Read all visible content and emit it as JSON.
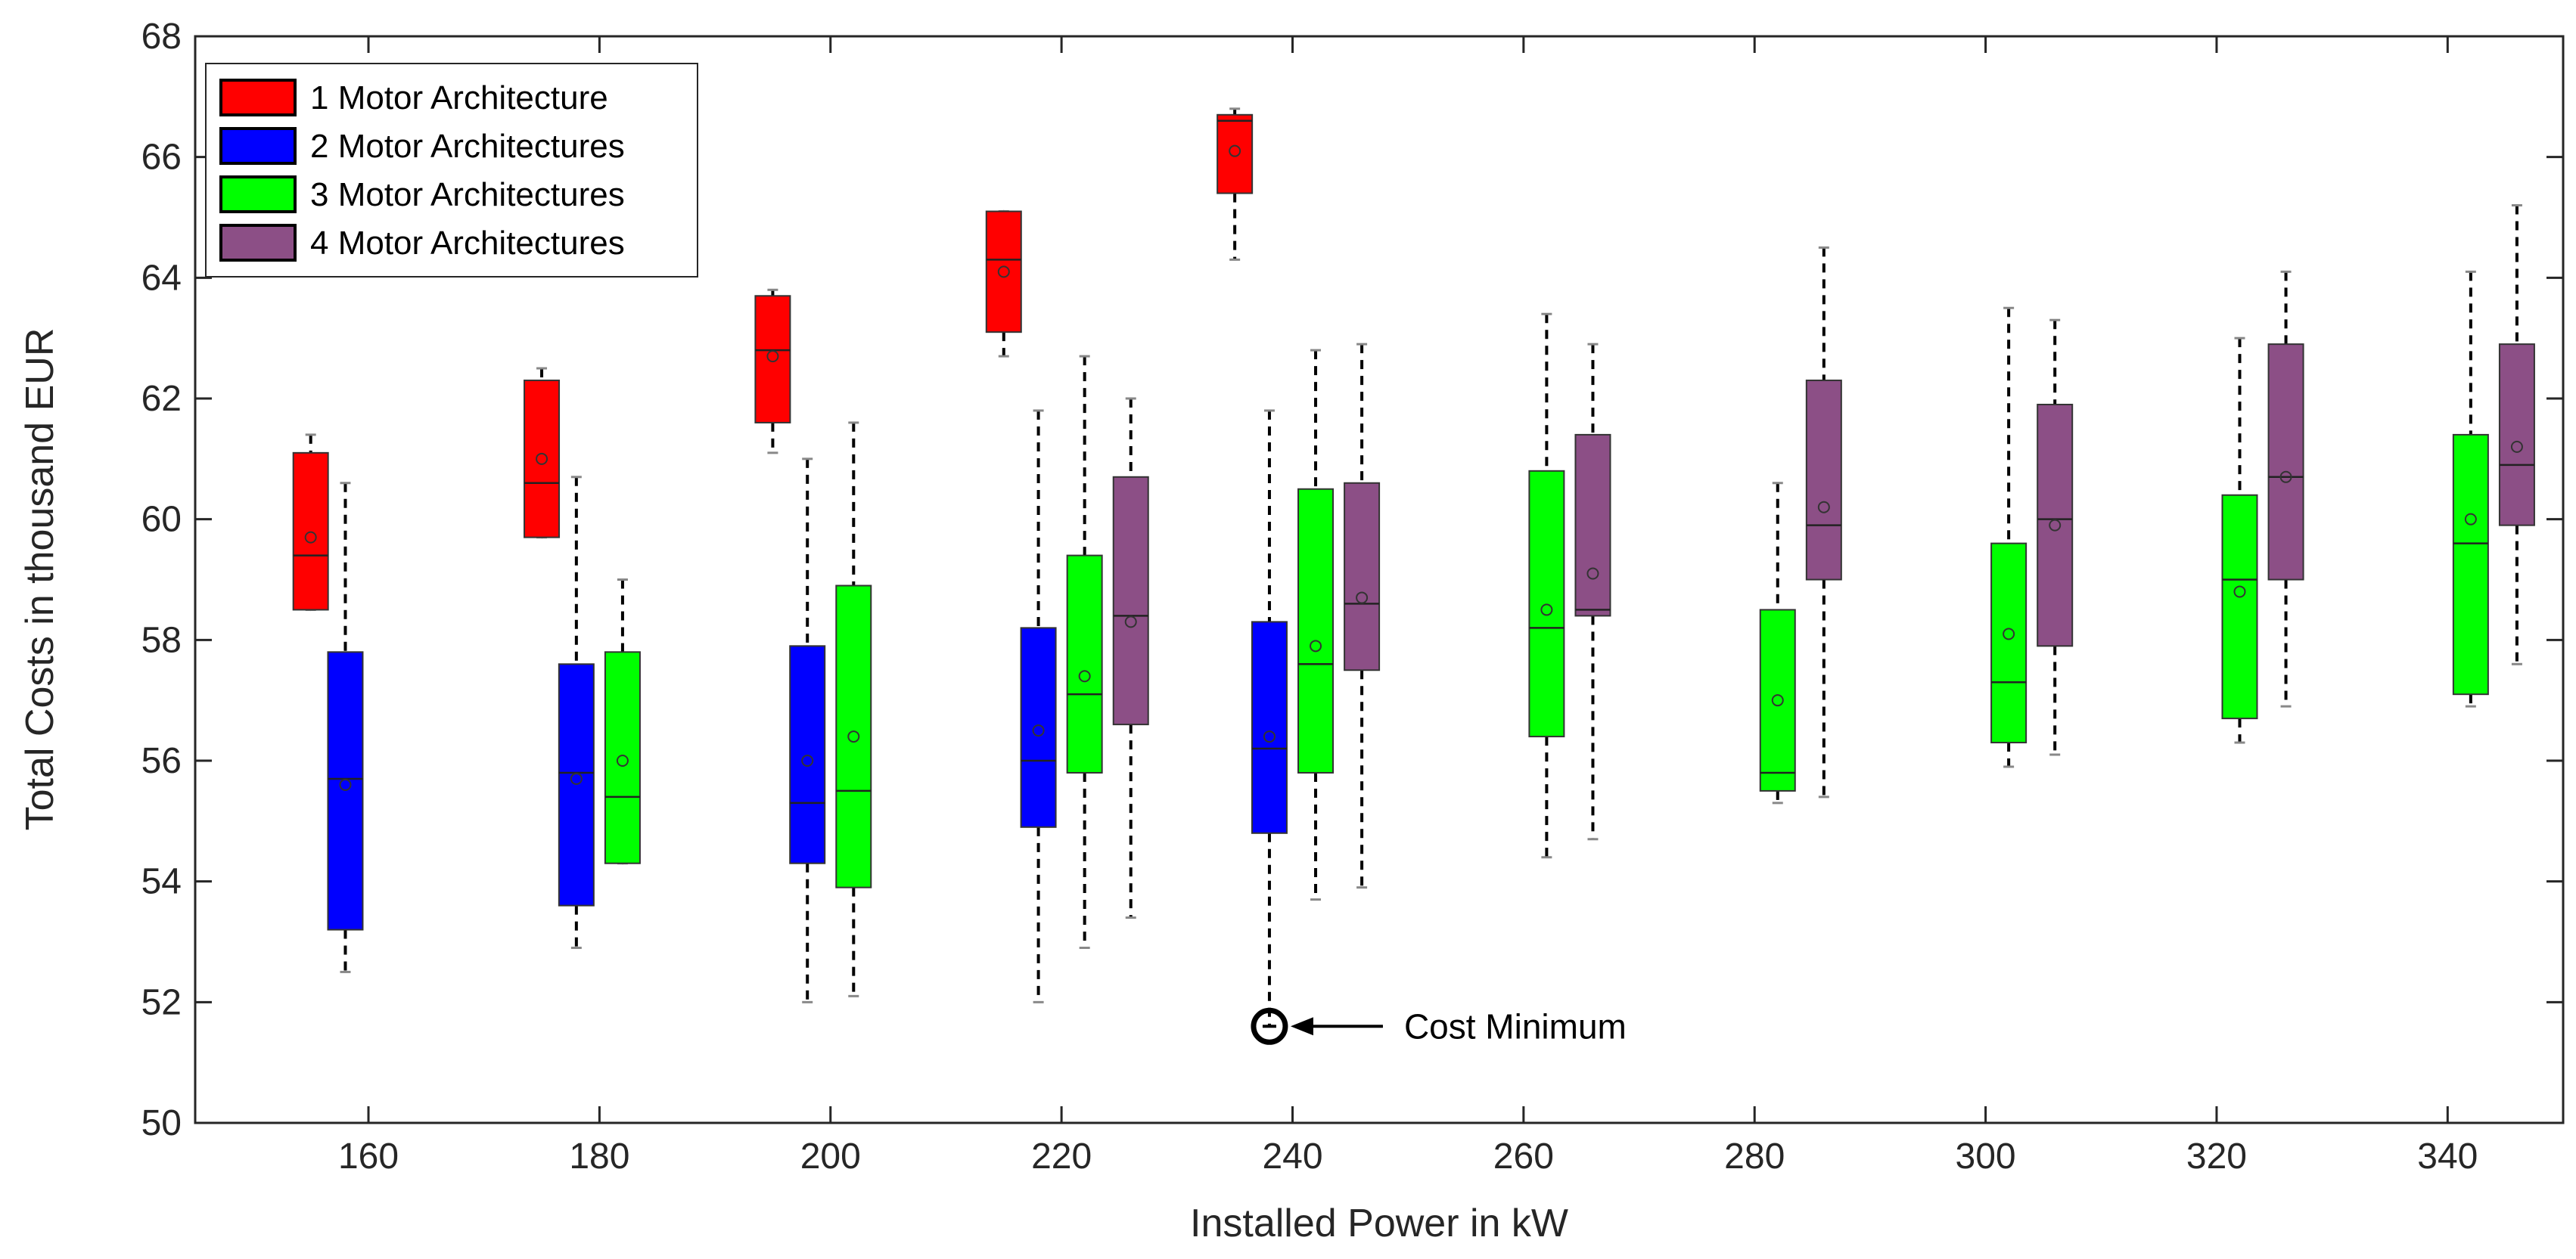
{
  "chart_data": {
    "type": "boxplot",
    "title": "",
    "xlabel": "Installed Power in kW",
    "ylabel": "Total Costs in thousand EUR",
    "xlim": [
      145,
      350
    ],
    "ylim": [
      50,
      68
    ],
    "x_ticks": [
      160,
      180,
      200,
      220,
      240,
      260,
      280,
      300,
      320,
      340
    ],
    "y_ticks": [
      50,
      52,
      54,
      56,
      58,
      60,
      62,
      64,
      66,
      68
    ],
    "grid": false,
    "legend_position": "top-left",
    "series": [
      {
        "name": "1 Motor Architecture",
        "color": "#ff0000",
        "boxes": [
          {
            "x": 155,
            "min": 58.5,
            "q1": 58.5,
            "median": 59.4,
            "q3": 61.1,
            "max": 61.4,
            "mean": 59.7
          },
          {
            "x": 175,
            "min": 59.7,
            "q1": 59.7,
            "median": 60.6,
            "q3": 62.3,
            "max": 62.5,
            "mean": 61.0
          },
          {
            "x": 195,
            "min": 61.1,
            "q1": 61.6,
            "median": 62.8,
            "q3": 63.7,
            "max": 63.8,
            "mean": 62.7
          },
          {
            "x": 215,
            "min": 62.7,
            "q1": 63.1,
            "median": 64.3,
            "q3": 65.1,
            "max": 65.1,
            "mean": 64.1
          },
          {
            "x": 235,
            "min": 64.3,
            "q1": 65.4,
            "median": 66.6,
            "q3": 66.7,
            "max": 66.8,
            "mean": 66.1
          }
        ]
      },
      {
        "name": "2 Motor Architectures",
        "color": "#0000ff",
        "boxes": [
          {
            "x": 158,
            "min": 52.5,
            "q1": 53.2,
            "median": 55.7,
            "q3": 57.8,
            "max": 60.6,
            "mean": 55.6
          },
          {
            "x": 178,
            "min": 52.9,
            "q1": 53.6,
            "median": 55.8,
            "q3": 57.6,
            "max": 60.7,
            "mean": 55.7
          },
          {
            "x": 198,
            "min": 52.0,
            "q1": 54.3,
            "median": 55.3,
            "q3": 57.9,
            "max": 61.0,
            "mean": 56.0
          },
          {
            "x": 218,
            "min": 52.0,
            "q1": 54.9,
            "median": 56.0,
            "q3": 58.2,
            "max": 61.8,
            "mean": 56.5
          },
          {
            "x": 238,
            "min": 51.6,
            "q1": 54.8,
            "median": 56.2,
            "q3": 58.3,
            "max": 61.8,
            "mean": 56.4
          }
        ]
      },
      {
        "name": "3  Motor Architectures",
        "color": "#00ff00",
        "boxes": [
          {
            "x": 182,
            "min": 54.3,
            "q1": 54.3,
            "median": 55.4,
            "q3": 57.8,
            "max": 59.0,
            "mean": 56.0
          },
          {
            "x": 202,
            "min": 52.1,
            "q1": 53.9,
            "median": 55.5,
            "q3": 58.9,
            "max": 61.6,
            "mean": 56.4
          },
          {
            "x": 222,
            "min": 52.9,
            "q1": 55.8,
            "median": 57.1,
            "q3": 59.4,
            "max": 62.7,
            "mean": 57.4
          },
          {
            "x": 242,
            "min": 53.7,
            "q1": 55.8,
            "median": 57.6,
            "q3": 60.5,
            "max": 62.8,
            "mean": 57.9
          },
          {
            "x": 262,
            "min": 54.4,
            "q1": 56.4,
            "median": 58.2,
            "q3": 60.8,
            "max": 63.4,
            "mean": 58.5
          },
          {
            "x": 282,
            "min": 55.3,
            "q1": 55.5,
            "median": 55.8,
            "q3": 58.5,
            "max": 60.6,
            "mean": 57.0
          },
          {
            "x": 302,
            "min": 55.9,
            "q1": 56.3,
            "median": 57.3,
            "q3": 59.6,
            "max": 63.5,
            "mean": 58.1
          },
          {
            "x": 322,
            "min": 56.3,
            "q1": 56.7,
            "median": 59.0,
            "q3": 60.4,
            "max": 63.0,
            "mean": 58.8
          },
          {
            "x": 342,
            "min": 56.9,
            "q1": 57.1,
            "median": 59.6,
            "q3": 61.4,
            "max": 64.1,
            "mean": 60.0
          }
        ]
      },
      {
        "name": "4  Motor Architectures",
        "color": "#8c4f86",
        "boxes": [
          {
            "x": 226,
            "min": 53.4,
            "q1": 56.6,
            "median": 58.4,
            "q3": 60.7,
            "max": 62.0,
            "mean": 58.3
          },
          {
            "x": 246,
            "min": 53.9,
            "q1": 57.5,
            "median": 58.6,
            "q3": 60.6,
            "max": 62.9,
            "mean": 58.7
          },
          {
            "x": 266,
            "min": 54.7,
            "q1": 58.4,
            "median": 58.5,
            "q3": 61.4,
            "max": 62.9,
            "mean": 59.1
          },
          {
            "x": 286,
            "min": 55.4,
            "q1": 59.0,
            "median": 59.9,
            "q3": 62.3,
            "max": 64.5,
            "mean": 60.2
          },
          {
            "x": 306,
            "min": 56.1,
            "q1": 57.9,
            "median": 60.0,
            "q3": 61.9,
            "max": 63.3,
            "mean": 59.9
          },
          {
            "x": 326,
            "min": 56.9,
            "q1": 59.0,
            "median": 60.7,
            "q3": 62.9,
            "max": 64.1,
            "mean": 60.7
          },
          {
            "x": 346,
            "min": 57.6,
            "q1": 59.9,
            "median": 60.9,
            "q3": 62.9,
            "max": 65.2,
            "mean": 61.2
          }
        ]
      }
    ],
    "annotations": [
      {
        "text": "Cost Minimum",
        "x": 238,
        "y": 51.6
      }
    ]
  }
}
